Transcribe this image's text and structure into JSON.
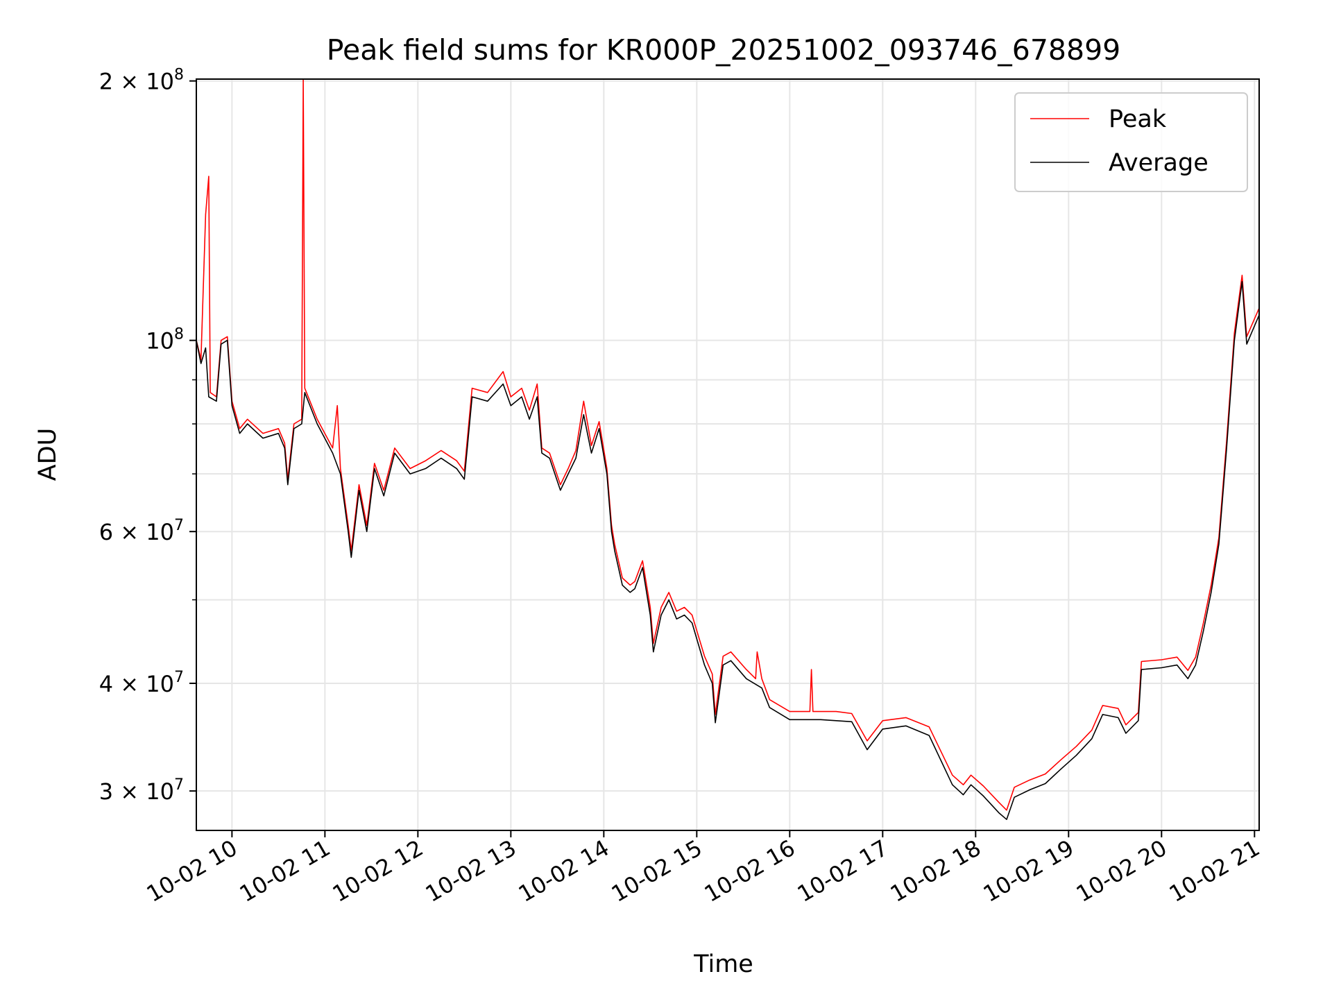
{
  "chart_data": {
    "type": "line",
    "title": "Peak field sums for KR000P_20251002_093746_678899",
    "xlabel": "Time",
    "ylabel": "ADU",
    "yscale": "log",
    "grid": true,
    "legend_position": "top-right",
    "xlim": [
      "2025-10-02 09:37",
      "2025-10-02 21:03"
    ],
    "ylim": [
      27000000,
      201000000
    ],
    "x_ticks": [
      {
        "value": "2025-10-02 10:00",
        "label": "10-02 10"
      },
      {
        "value": "2025-10-02 11:00",
        "label": "10-02 11"
      },
      {
        "value": "2025-10-02 12:00",
        "label": "10-02 12"
      },
      {
        "value": "2025-10-02 13:00",
        "label": "10-02 13"
      },
      {
        "value": "2025-10-02 14:00",
        "label": "10-02 14"
      },
      {
        "value": "2025-10-02 15:00",
        "label": "10-02 15"
      },
      {
        "value": "2025-10-02 16:00",
        "label": "10-02 16"
      },
      {
        "value": "2025-10-02 17:00",
        "label": "10-02 17"
      },
      {
        "value": "2025-10-02 18:00",
        "label": "10-02 18"
      },
      {
        "value": "2025-10-02 19:00",
        "label": "10-02 19"
      },
      {
        "value": "2025-10-02 20:00",
        "label": "10-02 20"
      },
      {
        "value": "2025-10-02 21:00",
        "label": "10-02 21"
      }
    ],
    "y_major_ticks": [
      {
        "value": 30000000,
        "mantissa": "3",
        "exp": "7"
      },
      {
        "value": 40000000,
        "mantissa": "4",
        "exp": "7"
      },
      {
        "value": 60000000,
        "mantissa": "6",
        "exp": "7"
      },
      {
        "value": 100000000,
        "mantissa": "",
        "exp": "8"
      },
      {
        "value": 200000000,
        "mantissa": "2",
        "exp": "8"
      }
    ],
    "y_minor_ticks": [
      50000000,
      70000000,
      80000000,
      90000000
    ],
    "series": [
      {
        "name": "Average",
        "color": "#000000",
        "points": [
          [
            "2025-10-02 09:37",
            100000000
          ],
          [
            "2025-10-02 09:40",
            94000000
          ],
          [
            "2025-10-02 09:43",
            98000000
          ],
          [
            "2025-10-02 09:45",
            86000000
          ],
          [
            "2025-10-02 09:50",
            85000000
          ],
          [
            "2025-10-02 09:53",
            99000000
          ],
          [
            "2025-10-02 09:57",
            100000000
          ],
          [
            "2025-10-02 10:00",
            84000000
          ],
          [
            "2025-10-02 10:05",
            78000000
          ],
          [
            "2025-10-02 10:10",
            80000000
          ],
          [
            "2025-10-02 10:20",
            77000000
          ],
          [
            "2025-10-02 10:30",
            78000000
          ],
          [
            "2025-10-02 10:34",
            75000000
          ],
          [
            "2025-10-02 10:36",
            68000000
          ],
          [
            "2025-10-02 10:40",
            79000000
          ],
          [
            "2025-10-02 10:45",
            80000000
          ],
          [
            "2025-10-02 10:47",
            87000000
          ],
          [
            "2025-10-02 10:55",
            80000000
          ],
          [
            "2025-10-02 11:05",
            74000000
          ],
          [
            "2025-10-02 11:10",
            70000000
          ],
          [
            "2025-10-02 11:15",
            60000000
          ],
          [
            "2025-10-02 11:17",
            56000000
          ],
          [
            "2025-10-02 11:22",
            67000000
          ],
          [
            "2025-10-02 11:27",
            60000000
          ],
          [
            "2025-10-02 11:32",
            71000000
          ],
          [
            "2025-10-02 11:38",
            66000000
          ],
          [
            "2025-10-02 11:45",
            74000000
          ],
          [
            "2025-10-02 11:55",
            70000000
          ],
          [
            "2025-10-02 12:05",
            71000000
          ],
          [
            "2025-10-02 12:15",
            73000000
          ],
          [
            "2025-10-02 12:25",
            71000000
          ],
          [
            "2025-10-02 12:30",
            69000000
          ],
          [
            "2025-10-02 12:35",
            86000000
          ],
          [
            "2025-10-02 12:45",
            85000000
          ],
          [
            "2025-10-02 12:55",
            89000000
          ],
          [
            "2025-10-02 13:00",
            84000000
          ],
          [
            "2025-10-02 13:07",
            86000000
          ],
          [
            "2025-10-02 13:12",
            81000000
          ],
          [
            "2025-10-02 13:17",
            86000000
          ],
          [
            "2025-10-02 13:20",
            74000000
          ],
          [
            "2025-10-02 13:25",
            73000000
          ],
          [
            "2025-10-02 13:32",
            67000000
          ],
          [
            "2025-10-02 13:37",
            70000000
          ],
          [
            "2025-10-02 13:42",
            73000000
          ],
          [
            "2025-10-02 13:47",
            82000000
          ],
          [
            "2025-10-02 13:52",
            74000000
          ],
          [
            "2025-10-02 13:57",
            79000000
          ],
          [
            "2025-10-02 14:02",
            70000000
          ],
          [
            "2025-10-02 14:05",
            60000000
          ],
          [
            "2025-10-02 14:07",
            57000000
          ],
          [
            "2025-10-02 14:12",
            52000000
          ],
          [
            "2025-10-02 14:17",
            51000000
          ],
          [
            "2025-10-02 14:20",
            51500000
          ],
          [
            "2025-10-02 14:25",
            54500000
          ],
          [
            "2025-10-02 14:30",
            48000000
          ],
          [
            "2025-10-02 14:32",
            43500000
          ],
          [
            "2025-10-02 14:37",
            48000000
          ],
          [
            "2025-10-02 14:42",
            50000000
          ],
          [
            "2025-10-02 14:47",
            47500000
          ],
          [
            "2025-10-02 14:52",
            48000000
          ],
          [
            "2025-10-02 14:57",
            47000000
          ],
          [
            "2025-10-02 15:05",
            42000000
          ],
          [
            "2025-10-02 15:10",
            40000000
          ],
          [
            "2025-10-02 15:12",
            36000000
          ],
          [
            "2025-10-02 15:17",
            42000000
          ],
          [
            "2025-10-02 15:22",
            42500000
          ],
          [
            "2025-10-02 15:32",
            40500000
          ],
          [
            "2025-10-02 15:42",
            39500000
          ],
          [
            "2025-10-02 15:47",
            37500000
          ],
          [
            "2025-10-02 16:00",
            36300000
          ],
          [
            "2025-10-02 16:20",
            36300000
          ],
          [
            "2025-10-02 16:40",
            36100000
          ],
          [
            "2025-10-02 16:50",
            33500000
          ],
          [
            "2025-10-02 17:00",
            35400000
          ],
          [
            "2025-10-02 17:15",
            35700000
          ],
          [
            "2025-10-02 17:30",
            34800000
          ],
          [
            "2025-10-02 17:45",
            30500000
          ],
          [
            "2025-10-02 17:52",
            29700000
          ],
          [
            "2025-10-02 17:57",
            30500000
          ],
          [
            "2025-10-02 18:05",
            29600000
          ],
          [
            "2025-10-02 18:15",
            28300000
          ],
          [
            "2025-10-02 18:20",
            27800000
          ],
          [
            "2025-10-02 18:25",
            29500000
          ],
          [
            "2025-10-02 18:35",
            30100000
          ],
          [
            "2025-10-02 18:45",
            30600000
          ],
          [
            "2025-10-02 18:55",
            31800000
          ],
          [
            "2025-10-02 19:05",
            33000000
          ],
          [
            "2025-10-02 19:15",
            34500000
          ],
          [
            "2025-10-02 19:22",
            36800000
          ],
          [
            "2025-10-02 19:32",
            36500000
          ],
          [
            "2025-10-02 19:37",
            35000000
          ],
          [
            "2025-10-02 19:45",
            36200000
          ],
          [
            "2025-10-02 19:47",
            41500000
          ],
          [
            "2025-10-02 20:00",
            41700000
          ],
          [
            "2025-10-02 20:10",
            42000000
          ],
          [
            "2025-10-02 20:17",
            40500000
          ],
          [
            "2025-10-02 20:22",
            42000000
          ],
          [
            "2025-10-02 20:27",
            46000000
          ],
          [
            "2025-10-02 20:32",
            51000000
          ],
          [
            "2025-10-02 20:37",
            58000000
          ],
          [
            "2025-10-02 20:42",
            75000000
          ],
          [
            "2025-10-02 20:47",
            100000000
          ],
          [
            "2025-10-02 20:52",
            117000000
          ],
          [
            "2025-10-02 20:55",
            99000000
          ],
          [
            "2025-10-02 21:03",
            107000000
          ]
        ]
      },
      {
        "name": "Peak",
        "color": "#ff0000",
        "points": [
          [
            "2025-10-02 09:37",
            100000000
          ],
          [
            "2025-10-02 09:40",
            95000000
          ],
          [
            "2025-10-02 09:43",
            140000000
          ],
          [
            "2025-10-02 09:45",
            155000000
          ],
          [
            "2025-10-02 09:46",
            87000000
          ],
          [
            "2025-10-02 09:50",
            86000000
          ],
          [
            "2025-10-02 09:53",
            100000000
          ],
          [
            "2025-10-02 09:57",
            101000000
          ],
          [
            "2025-10-02 10:00",
            85000000
          ],
          [
            "2025-10-02 10:05",
            79000000
          ],
          [
            "2025-10-02 10:10",
            81000000
          ],
          [
            "2025-10-02 10:20",
            78000000
          ],
          [
            "2025-10-02 10:30",
            79000000
          ],
          [
            "2025-10-02 10:34",
            76000000
          ],
          [
            "2025-10-02 10:36",
            69000000
          ],
          [
            "2025-10-02 10:40",
            80000000
          ],
          [
            "2025-10-02 10:45",
            81000000
          ],
          [
            "2025-10-02 10:46",
            201000000
          ],
          [
            "2025-10-02 10:47",
            88000000
          ],
          [
            "2025-10-02 10:55",
            81000000
          ],
          [
            "2025-10-02 11:05",
            75000000
          ],
          [
            "2025-10-02 11:08",
            84000000
          ],
          [
            "2025-10-02 11:10",
            71000000
          ],
          [
            "2025-10-02 11:15",
            61000000
          ],
          [
            "2025-10-02 11:17",
            57000000
          ],
          [
            "2025-10-02 11:22",
            68000000
          ],
          [
            "2025-10-02 11:27",
            61000000
          ],
          [
            "2025-10-02 11:32",
            72000000
          ],
          [
            "2025-10-02 11:38",
            67000000
          ],
          [
            "2025-10-02 11:45",
            75000000
          ],
          [
            "2025-10-02 11:55",
            71000000
          ],
          [
            "2025-10-02 12:05",
            72500000
          ],
          [
            "2025-10-02 12:15",
            74500000
          ],
          [
            "2025-10-02 12:25",
            72500000
          ],
          [
            "2025-10-02 12:30",
            70500000
          ],
          [
            "2025-10-02 12:35",
            88000000
          ],
          [
            "2025-10-02 12:45",
            87000000
          ],
          [
            "2025-10-02 12:55",
            92000000
          ],
          [
            "2025-10-02 13:00",
            86000000
          ],
          [
            "2025-10-02 13:07",
            88000000
          ],
          [
            "2025-10-02 13:12",
            83000000
          ],
          [
            "2025-10-02 13:17",
            89000000
          ],
          [
            "2025-10-02 13:20",
            75000000
          ],
          [
            "2025-10-02 13:25",
            74000000
          ],
          [
            "2025-10-02 13:32",
            68000000
          ],
          [
            "2025-10-02 13:37",
            71000000
          ],
          [
            "2025-10-02 13:42",
            74500000
          ],
          [
            "2025-10-02 13:47",
            85000000
          ],
          [
            "2025-10-02 13:52",
            75500000
          ],
          [
            "2025-10-02 13:57",
            80500000
          ],
          [
            "2025-10-02 14:02",
            71000000
          ],
          [
            "2025-10-02 14:05",
            61000000
          ],
          [
            "2025-10-02 14:07",
            58000000
          ],
          [
            "2025-10-02 14:12",
            53000000
          ],
          [
            "2025-10-02 14:17",
            52000000
          ],
          [
            "2025-10-02 14:20",
            52500000
          ],
          [
            "2025-10-02 14:25",
            55500000
          ],
          [
            "2025-10-02 14:30",
            49000000
          ],
          [
            "2025-10-02 14:32",
            44500000
          ],
          [
            "2025-10-02 14:37",
            49000000
          ],
          [
            "2025-10-02 14:42",
            51000000
          ],
          [
            "2025-10-02 14:47",
            48500000
          ],
          [
            "2025-10-02 14:52",
            49000000
          ],
          [
            "2025-10-02 14:57",
            48000000
          ],
          [
            "2025-10-02 15:05",
            43000000
          ],
          [
            "2025-10-02 15:10",
            41000000
          ],
          [
            "2025-10-02 15:12",
            36800000
          ],
          [
            "2025-10-02 15:17",
            43000000
          ],
          [
            "2025-10-02 15:22",
            43500000
          ],
          [
            "2025-10-02 15:32",
            41500000
          ],
          [
            "2025-10-02 15:38",
            40500000
          ],
          [
            "2025-10-02 15:39",
            43500000
          ],
          [
            "2025-10-02 15:42",
            40500000
          ],
          [
            "2025-10-02 15:47",
            38300000
          ],
          [
            "2025-10-02 16:00",
            37100000
          ],
          [
            "2025-10-02 16:13",
            37100000
          ],
          [
            "2025-10-02 16:14",
            41500000
          ],
          [
            "2025-10-02 16:15",
            37100000
          ],
          [
            "2025-10-02 16:30",
            37100000
          ],
          [
            "2025-10-02 16:40",
            36900000
          ],
          [
            "2025-10-02 16:50",
            34300000
          ],
          [
            "2025-10-02 17:00",
            36200000
          ],
          [
            "2025-10-02 17:15",
            36500000
          ],
          [
            "2025-10-02 17:30",
            35600000
          ],
          [
            "2025-10-02 17:45",
            31300000
          ],
          [
            "2025-10-02 17:52",
            30500000
          ],
          [
            "2025-10-02 17:57",
            31300000
          ],
          [
            "2025-10-02 18:05",
            30400000
          ],
          [
            "2025-10-02 18:15",
            29100000
          ],
          [
            "2025-10-02 18:20",
            28500000
          ],
          [
            "2025-10-02 18:25",
            30300000
          ],
          [
            "2025-10-02 18:35",
            30900000
          ],
          [
            "2025-10-02 18:45",
            31400000
          ],
          [
            "2025-10-02 18:55",
            32600000
          ],
          [
            "2025-10-02 19:05",
            33800000
          ],
          [
            "2025-10-02 19:15",
            35300000
          ],
          [
            "2025-10-02 19:22",
            37700000
          ],
          [
            "2025-10-02 19:32",
            37400000
          ],
          [
            "2025-10-02 19:37",
            35800000
          ],
          [
            "2025-10-02 19:45",
            37000000
          ],
          [
            "2025-10-02 19:47",
            42400000
          ],
          [
            "2025-10-02 20:00",
            42600000
          ],
          [
            "2025-10-02 20:10",
            42900000
          ],
          [
            "2025-10-02 20:17",
            41400000
          ],
          [
            "2025-10-02 20:22",
            42900000
          ],
          [
            "2025-10-02 20:27",
            47000000
          ],
          [
            "2025-10-02 20:32",
            52000000
          ],
          [
            "2025-10-02 20:37",
            59000000
          ],
          [
            "2025-10-02 20:42",
            76500000
          ],
          [
            "2025-10-02 20:47",
            102000000
          ],
          [
            "2025-10-02 20:52",
            119000000
          ],
          [
            "2025-10-02 20:55",
            101000000
          ],
          [
            "2025-10-02 21:03",
            109000000
          ]
        ]
      }
    ],
    "legend_order": [
      "Peak",
      "Average"
    ]
  }
}
